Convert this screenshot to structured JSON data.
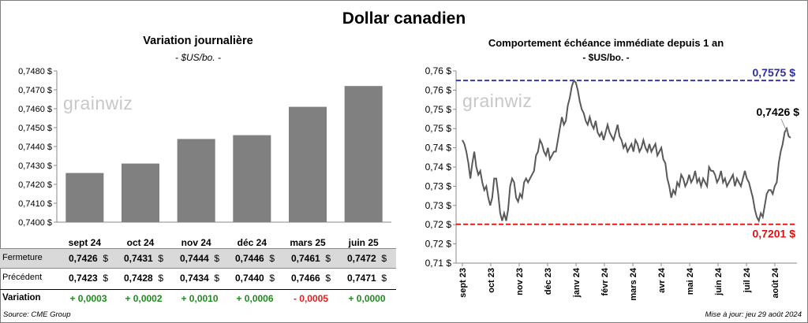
{
  "title": "Dollar canadien",
  "left_chart": {
    "title": "Variation  journalière",
    "unit": "- $US/bo. -"
  },
  "right_chart": {
    "title": "Comportement échéance immédiate depuis 1 an",
    "unit": "- $US/bo. -"
  },
  "watermark": "grainwiz",
  "table": {
    "rows": [
      {
        "label": "Fermeture",
        "values": [
          "0,7426",
          "0,7431",
          "0,7444",
          "0,7446",
          "0,7461",
          "0,7472"
        ],
        "unit": "$"
      },
      {
        "label": "Précédent",
        "values": [
          "0,7423",
          "0,7428",
          "0,7434",
          "0,7440",
          "0,7466",
          "0,7471"
        ],
        "unit": "$"
      },
      {
        "label": "Variation",
        "values": [
          "+ 0,0003",
          "+ 0,0002",
          "+ 0,0010",
          "+ 0,0006",
          "- 0,0005",
          "+ 0,0000"
        ]
      }
    ],
    "variation_colors": [
      "#1e8c1e",
      "#1e8c1e",
      "#1e8c1e",
      "#1e8c1e",
      "#e02020",
      "#1e8c1e"
    ]
  },
  "footer": {
    "source": "Source: CME Group",
    "updated": "Mise à jour: jeu 29 août 2024"
  },
  "chart_data": [
    {
      "type": "bar",
      "categories": [
        "sept 24",
        "oct 24",
        "nov 24",
        "déc 24",
        "mars 25",
        "juin 25"
      ],
      "values": [
        0.7426,
        0.7431,
        0.7444,
        0.7446,
        0.7461,
        0.7472
      ],
      "ylim": [
        0.74,
        0.748
      ],
      "yticks": [
        "0,7400 $",
        "0,7410 $",
        "0,7420 $",
        "0,7430 $",
        "0,7440 $",
        "0,7450 $",
        "0,7460 $",
        "0,7470 $",
        "0,7480 $"
      ],
      "bar_color": "#808080",
      "grid": false
    },
    {
      "type": "line",
      "ylim": [
        0.71,
        0.76
      ],
      "yticks": [
        "0,71 $",
        "0,72 $",
        "0,72 $",
        "0,73 $",
        "0,73 $",
        "0,74 $",
        "0,74 $",
        "0,75 $",
        "0,75 $",
        "0,76 $",
        "0,76 $"
      ],
      "xticks": [
        "sept 23",
        "oct 23",
        "nov 23",
        "déc 23",
        "janv 24",
        "févr 24",
        "mars 24",
        "avr 24",
        "mai 24",
        "juin 24",
        "juil 24",
        "août 24"
      ],
      "high": {
        "value": 0.7575,
        "label": "0,7575 $",
        "color": "#2e2ea0"
      },
      "low": {
        "value": 0.7201,
        "label": "0,7201 $",
        "color": "#e01010"
      },
      "last": {
        "value": 0.7426,
        "label": "0,7426 $"
      },
      "line_color": "#595959",
      "series": [
        {
          "values": [
            0.742,
            0.741,
            0.739,
            0.736,
            0.732,
            0.736,
            0.739,
            0.735,
            0.733,
            0.734,
            0.731,
            0.729,
            0.73,
            0.727,
            0.725,
            0.727,
            0.732,
            0.732,
            0.728,
            0.723,
            0.721,
            0.723,
            0.721,
            0.724,
            0.73,
            0.732,
            0.731,
            0.727,
            0.726,
            0.728,
            0.727,
            0.731,
            0.732,
            0.731,
            0.732,
            0.733,
            0.734,
            0.738,
            0.739,
            0.742,
            0.741,
            0.739,
            0.738,
            0.74,
            0.737,
            0.738,
            0.739,
            0.739,
            0.742,
            0.745,
            0.748,
            0.746,
            0.747,
            0.751,
            0.753,
            0.756,
            0.7575,
            0.757,
            0.755,
            0.752,
            0.75,
            0.749,
            0.747,
            0.746,
            0.748,
            0.746,
            0.745,
            0.747,
            0.744,
            0.743,
            0.744,
            0.742,
            0.744,
            0.746,
            0.744,
            0.743,
            0.742,
            0.744,
            0.746,
            0.743,
            0.742,
            0.74,
            0.741,
            0.739,
            0.74,
            0.741,
            0.739,
            0.742,
            0.741,
            0.739,
            0.74,
            0.742,
            0.74,
            0.739,
            0.741,
            0.739,
            0.74,
            0.741,
            0.738,
            0.739,
            0.74,
            0.737,
            0.736,
            0.732,
            0.73,
            0.727,
            0.729,
            0.728,
            0.731,
            0.73,
            0.733,
            0.732,
            0.73,
            0.731,
            0.733,
            0.731,
            0.732,
            0.734,
            0.731,
            0.732,
            0.73,
            0.732,
            0.731,
            0.73,
            0.735,
            0.734,
            0.734,
            0.733,
            0.731,
            0.732,
            0.734,
            0.731,
            0.732,
            0.73,
            0.731,
            0.732,
            0.733,
            0.73,
            0.732,
            0.731,
            0.73,
            0.732,
            0.734,
            0.732,
            0.731,
            0.729,
            0.727,
            0.724,
            0.722,
            0.721,
            0.723,
            0.722,
            0.725,
            0.728,
            0.729,
            0.729,
            0.728,
            0.73,
            0.731,
            0.736,
            0.739,
            0.741,
            0.744,
            0.745,
            0.743,
            0.7426
          ]
        }
      ]
    }
  ]
}
